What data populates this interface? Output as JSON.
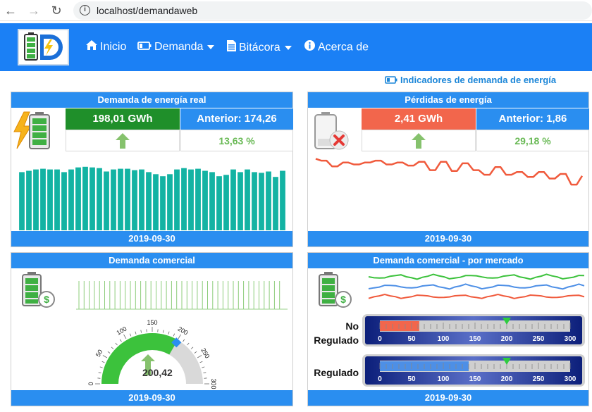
{
  "browser": {
    "url": "localhost/demandaweb"
  },
  "nav": {
    "items": [
      {
        "label": "Inicio",
        "icon": "home-icon"
      },
      {
        "label": "Demanda",
        "icon": "battery-icon",
        "dropdown": true
      },
      {
        "label": "Bitácora",
        "icon": "document-icon",
        "dropdown": true
      },
      {
        "label": "Acerca de",
        "icon": "info-icon"
      }
    ]
  },
  "page": {
    "subtitle": "Indicadores de demanda de energía"
  },
  "colors": {
    "navbar": "#1b80f5",
    "panel_header": "#2a8ef0",
    "green_kpi": "#1f8f2a",
    "red_kpi": "#f2664c",
    "bars": "#13b3a3",
    "loss_line": "#f05a3c"
  },
  "panels": {
    "real": {
      "title": "Demanda de energía real",
      "value": "198,01 GWh",
      "previous": "Anterior: 174,26",
      "change": "13,63 %",
      "date": "2019-09-30",
      "bars": [
        0.86,
        0.88,
        0.9,
        0.91,
        0.9,
        0.9,
        0.86,
        0.9,
        0.93,
        0.94,
        0.93,
        0.92,
        0.87,
        0.9,
        0.91,
        0.91,
        0.89,
        0.9,
        0.86,
        0.83,
        0.8,
        0.83,
        0.9,
        0.92,
        0.9,
        0.91,
        0.88,
        0.86,
        0.8,
        0.82,
        0.9,
        0.86,
        0.9,
        0.86,
        0.85,
        0.87,
        0.79,
        0.88
      ]
    },
    "losses": {
      "title": "Pérdidas de energía",
      "value": "2,41 GWh",
      "previous": "Anterior: 1,86",
      "change": "29,18 %",
      "date": "2019-09-30",
      "line": [
        0.9,
        0.85,
        0.85,
        0.7,
        0.7,
        0.8,
        0.8,
        0.75,
        0.75,
        0.8,
        0.8,
        0.85,
        0.85,
        0.75,
        0.75,
        0.8,
        0.8,
        0.72,
        0.72,
        0.82,
        0.82,
        0.6,
        0.6,
        0.82,
        0.82,
        0.58,
        0.58,
        0.78,
        0.78,
        0.6,
        0.6,
        0.48,
        0.48,
        0.68,
        0.68,
        0.48,
        0.48,
        0.55,
        0.55,
        0.42,
        0.42,
        0.55,
        0.55,
        0.38,
        0.38,
        0.5,
        0.5,
        0.22,
        0.22,
        0.45
      ]
    },
    "commercial": {
      "title": "Demanda comercial",
      "gauge_value": "200,42",
      "gauge_number": 200.42,
      "gauge_max": 300,
      "gauge_ticks": [
        "0",
        "50",
        "100",
        "150",
        "200",
        "250",
        "300"
      ],
      "date": "2019-09-30"
    },
    "market": {
      "title": "Demanda comercial - por mercado",
      "bullets": [
        {
          "label_line1": "No",
          "label_line2": "Regulado",
          "value": 62,
          "target": 200,
          "color": "#f2664c"
        },
        {
          "label_line1": "",
          "label_line2": "Regulado",
          "value": 140,
          "target": 200,
          "color": "#4d8fe6"
        }
      ],
      "scale": [
        "0",
        "50",
        "100",
        "150",
        "200",
        "250",
        "300"
      ],
      "date": "2019-09-30"
    }
  }
}
